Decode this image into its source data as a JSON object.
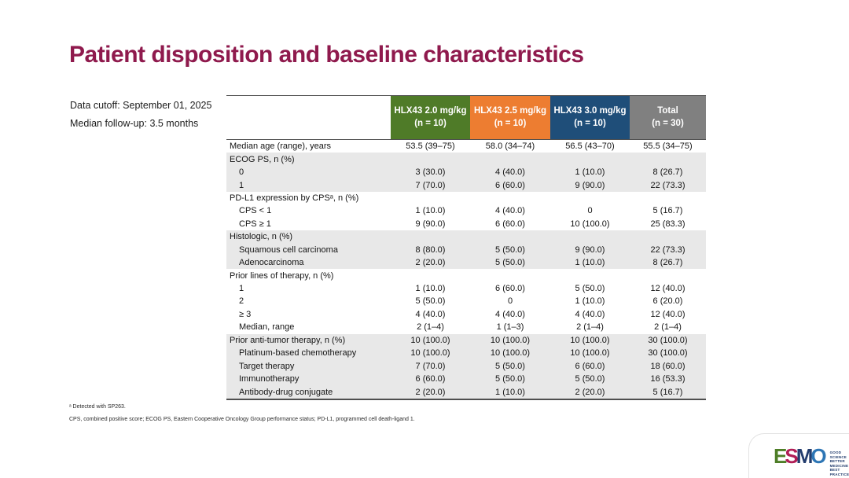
{
  "slide": {
    "title": "Patient disposition and baseline characteristics",
    "meta": [
      "Data cutoff: September 01, 2025",
      "Median follow-up: 3.5 months"
    ],
    "footnotes": [
      "ᵃ Detected with SP263.",
      "CPS, combined positive score; ECOG PS, Eastern Cooperative Oncology Group performance status; PD-L1, programmed cell death-ligand 1."
    ]
  },
  "colors": {
    "title": "#8f1a4d",
    "header_green": "#4f7b28",
    "header_orange": "#ed7d31",
    "header_blue": "#1f4e79",
    "header_gray": "#808080",
    "row_shade": "#e8e8e8"
  },
  "table": {
    "columns": [
      {
        "label": "HLX43 2.0 mg/kg",
        "sublabel": "(n = 10)",
        "color": "#4f7b28"
      },
      {
        "label": "HLX43 2.5 mg/kg",
        "sublabel": "(n = 10)",
        "color": "#ed7d31"
      },
      {
        "label": "HLX43 3.0 mg/kg",
        "sublabel": "(n = 10)",
        "color": "#1f4e79"
      },
      {
        "label": "Total",
        "sublabel": "(n = 30)",
        "color": "#808080"
      }
    ],
    "rows": [
      {
        "label": "Median age (range), years",
        "indent": 0,
        "shaded": false,
        "values": [
          "53.5 (39–75)",
          "58.0 (34–74)",
          "56.5 (43–70)",
          "55.5 (34–75)"
        ]
      },
      {
        "label": "ECOG PS, n (%)",
        "indent": 0,
        "shaded": true,
        "values": [
          "",
          "",
          "",
          ""
        ]
      },
      {
        "label": "0",
        "indent": 1,
        "shaded": true,
        "values": [
          "3 (30.0)",
          "4 (40.0)",
          "1 (10.0)",
          "8 (26.7)"
        ]
      },
      {
        "label": "1",
        "indent": 1,
        "shaded": true,
        "values": [
          "7 (70.0)",
          "6 (60.0)",
          "9 (90.0)",
          "22 (73.3)"
        ]
      },
      {
        "label": "PD-L1 expression by CPSᵃ, n (%)",
        "indent": 0,
        "shaded": false,
        "values": [
          "",
          "",
          "",
          ""
        ]
      },
      {
        "label": "CPS < 1",
        "indent": 1,
        "shaded": false,
        "values": [
          "1 (10.0)",
          "4 (40.0)",
          "0",
          "5 (16.7)"
        ]
      },
      {
        "label": "CPS ≥ 1",
        "indent": 1,
        "shaded": false,
        "values": [
          "9 (90.0)",
          "6 (60.0)",
          "10 (100.0)",
          "25 (83.3)"
        ]
      },
      {
        "label": "Histologic, n (%)",
        "indent": 0,
        "shaded": true,
        "values": [
          "",
          "",
          "",
          ""
        ]
      },
      {
        "label": "Squamous cell carcinoma",
        "indent": 1,
        "shaded": true,
        "values": [
          "8 (80.0)",
          "5 (50.0)",
          "9 (90.0)",
          "22 (73.3)"
        ]
      },
      {
        "label": "Adenocarcinoma",
        "indent": 1,
        "shaded": true,
        "values": [
          "2 (20.0)",
          "5 (50.0)",
          "1 (10.0)",
          "8 (26.7)"
        ]
      },
      {
        "label": "Prior lines of therapy, n (%)",
        "indent": 0,
        "shaded": false,
        "values": [
          "",
          "",
          "",
          ""
        ]
      },
      {
        "label": "1",
        "indent": 1,
        "shaded": false,
        "values": [
          "1 (10.0)",
          "6 (60.0)",
          "5 (50.0)",
          "12 (40.0)"
        ]
      },
      {
        "label": "2",
        "indent": 1,
        "shaded": false,
        "values": [
          "5 (50.0)",
          "0",
          "1 (10.0)",
          "6 (20.0)"
        ]
      },
      {
        "label": "≥ 3",
        "indent": 1,
        "shaded": false,
        "values": [
          "4 (40.0)",
          "4 (40.0)",
          "4 (40.0)",
          "12 (40.0)"
        ]
      },
      {
        "label": "Median, range",
        "indent": 1,
        "shaded": false,
        "values": [
          "2 (1–4)",
          "1 (1–3)",
          "2 (1–4)",
          "2 (1–4)"
        ]
      },
      {
        "label": "Prior anti-tumor therapy, n (%)",
        "indent": 0,
        "shaded": true,
        "values": [
          "10 (100.0)",
          "10 (100.0)",
          "10 (100.0)",
          "30 (100.0)"
        ]
      },
      {
        "label": "Platinum-based chemotherapy",
        "indent": 1,
        "shaded": true,
        "values": [
          "10 (100.0)",
          "10 (100.0)",
          "10 (100.0)",
          "30 (100.0)"
        ]
      },
      {
        "label": "Target therapy",
        "indent": 1,
        "shaded": true,
        "values": [
          "7 (70.0)",
          "5 (50.0)",
          "6 (60.0)",
          "18 (60.0)"
        ]
      },
      {
        "label": "Immunotherapy",
        "indent": 1,
        "shaded": true,
        "values": [
          "6 (60.0)",
          "5 (50.0)",
          "5 (50.0)",
          "16 (53.3)"
        ]
      },
      {
        "label": "Antibody-drug conjugate",
        "indent": 1,
        "shaded": true,
        "values": [
          "2 (20.0)",
          "1 (10.0)",
          "2 (20.0)",
          "5 (16.7)"
        ]
      }
    ]
  },
  "logo": {
    "name": "ESMO",
    "letters": [
      {
        "char": "E",
        "color": "#4e7e27"
      },
      {
        "char": "S",
        "color": "#b01e56"
      },
      {
        "char": "M",
        "color": "#233d6e"
      },
      {
        "char": "O",
        "color": "#2e76b5"
      }
    ],
    "tagline": [
      "GOOD SCIENCE",
      "BETTER MEDICINE",
      "BEST PRACTICE"
    ]
  }
}
